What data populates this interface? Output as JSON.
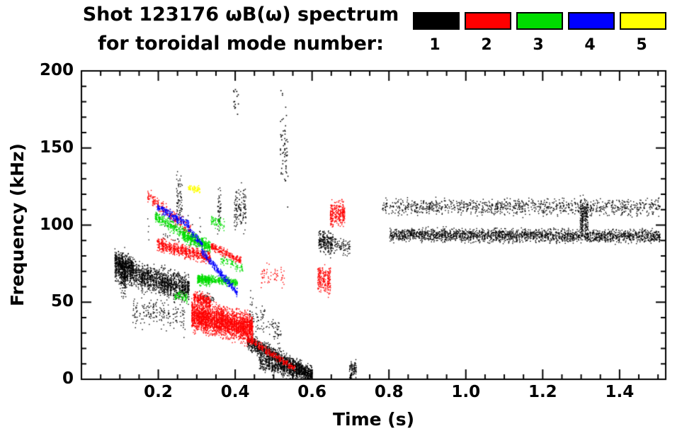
{
  "header": {
    "title_line1": "Shot 123176 ωB(ω) spectrum",
    "title_line2": "for toroidal mode number:"
  },
  "legend": {
    "entries": [
      {
        "label": "1",
        "color": "#000000"
      },
      {
        "label": "2",
        "color": "#ff0000"
      },
      {
        "label": "3",
        "color": "#00dd00"
      },
      {
        "label": "4",
        "color": "#0000ff"
      },
      {
        "label": "5",
        "color": "#ffff00"
      }
    ]
  },
  "chart_data": {
    "type": "scatter",
    "title": "Shot 123176 ωB(ω) spectrum for toroidal mode number:",
    "xlabel": "Time (s)",
    "ylabel": "Frequency (kHz)",
    "xlim": [
      0.0,
      1.52
    ],
    "ylim": [
      0,
      200
    ],
    "xticks": [
      0.2,
      0.4,
      0.6,
      0.8,
      1.0,
      1.2,
      1.4
    ],
    "xtick_labels": [
      "0.2",
      "0.4",
      "0.6",
      "0.8",
      "1.0",
      "1.2",
      "1.4"
    ],
    "yticks": [
      0,
      50,
      100,
      150,
      200
    ],
    "ytick_labels": [
      "0",
      "50",
      "100",
      "150",
      "200"
    ],
    "x_minor_step": 0.05,
    "y_minor_step": 10,
    "grid": false,
    "legend_position": "top",
    "background": "#ffffff",
    "axis_color": "#000000",
    "cluster_fields": "t0,t1 = time range (s); fa,fb = center frequency at t0 and t1 (kHz); sp = frequency spread (kHz); n = point count; cols = vertical streak columns",
    "series": [
      {
        "mode": 1,
        "label": "1",
        "name": "toroidal mode n=1",
        "color": "#000000",
        "clusters": [
          {
            "t0": 0.085,
            "t1": 0.28,
            "fa": 72,
            "fb": 59,
            "sp": 8,
            "n": 1700,
            "cols": 26
          },
          {
            "t0": 0.085,
            "t1": 0.135,
            "fa": 79,
            "fb": 74,
            "sp": 5,
            "n": 260,
            "cols": 6
          },
          {
            "t0": 0.098,
            "t1": 0.115,
            "fa": 68,
            "fb": 68,
            "sp": 13,
            "n": 130,
            "cols": 2
          },
          {
            "t0": 0.13,
            "t1": 0.27,
            "fa": 45,
            "fb": 40,
            "sp": 9,
            "n": 190,
            "cols": 8
          },
          {
            "t0": 0.245,
            "t1": 0.262,
            "fa": 117,
            "fb": 117,
            "sp": 16,
            "n": 70,
            "cols": 2
          },
          {
            "t0": 0.17,
            "t1": 0.31,
            "fa": 100,
            "fb": 95,
            "sp": 13,
            "n": 45,
            "cols": 11
          },
          {
            "t0": 0.352,
            "t1": 0.363,
            "fa": 110,
            "fb": 110,
            "sp": 14,
            "n": 45,
            "cols": 1
          },
          {
            "t0": 0.395,
            "t1": 0.428,
            "fa": 112,
            "fb": 110,
            "sp": 13,
            "n": 130,
            "cols": 3
          },
          {
            "t0": 0.393,
            "t1": 0.408,
            "fa": 178,
            "fb": 182,
            "sp": 9,
            "n": 14,
            "cols": 2,
            "ps": 1.7
          },
          {
            "t0": 0.515,
            "t1": 0.537,
            "fa": 148,
            "fb": 148,
            "sp": 30,
            "n": 60,
            "cols": 2,
            "ps": 1.6
          },
          {
            "t0": 0.43,
            "t1": 0.6,
            "fa": 25,
            "fb": 3,
            "sp": 5,
            "n": 1100,
            "cols": 22
          },
          {
            "t0": 0.46,
            "t1": 0.6,
            "fa": 12,
            "fb": 2,
            "sp": 5,
            "n": 700,
            "cols": 18
          },
          {
            "t0": 0.435,
            "t1": 0.52,
            "fa": 45,
            "fb": 30,
            "sp": 10,
            "n": 110,
            "cols": 6
          },
          {
            "t0": 0.615,
            "t1": 0.655,
            "fa": 90,
            "fb": 88,
            "sp": 7,
            "n": 230,
            "cols": 4
          },
          {
            "t0": 0.655,
            "t1": 0.7,
            "fa": 88,
            "fb": 86,
            "sp": 5,
            "n": 80,
            "cols": 4
          },
          {
            "t0": 0.695,
            "t1": 0.715,
            "fa": 7,
            "fb": 7,
            "sp": 5,
            "n": 90,
            "cols": 2
          },
          {
            "t0": 0.78,
            "t1": 1.505,
            "fa": 112,
            "fb": 112,
            "sp": 5,
            "n": 1100,
            "cols": 90
          },
          {
            "t0": 0.8,
            "t1": 1.505,
            "fa": 94,
            "fb": 93,
            "sp": 4,
            "n": 2300,
            "cols": 95
          },
          {
            "t0": 1.295,
            "t1": 1.318,
            "fa": 105,
            "fb": 105,
            "sp": 11,
            "n": 200,
            "cols": 2
          },
          {
            "t0": 0.3,
            "t1": 0.345,
            "fa": 55,
            "fb": 52,
            "sp": 3,
            "n": 40,
            "cols": 4
          }
        ]
      },
      {
        "mode": 2,
        "label": "2",
        "name": "toroidal mode n=2",
        "color": "#ff0000",
        "clusters": [
          {
            "t0": 0.17,
            "t1": 0.285,
            "fa": 120,
            "fb": 96,
            "sp": 4,
            "n": 230,
            "cols": 10
          },
          {
            "t0": 0.195,
            "t1": 0.335,
            "fa": 88,
            "fb": 79,
            "sp": 4,
            "n": 650,
            "cols": 14
          },
          {
            "t0": 0.335,
            "t1": 0.415,
            "fa": 87,
            "fb": 77,
            "sp": 2.5,
            "n": 240,
            "cols": 9
          },
          {
            "t0": 0.285,
            "t1": 0.445,
            "fa": 42,
            "fb": 33,
            "sp": 9,
            "n": 2800,
            "cols": 28
          },
          {
            "t0": 0.29,
            "t1": 0.335,
            "fa": 54,
            "fb": 50,
            "sp": 4,
            "n": 260,
            "cols": 6
          },
          {
            "t0": 0.43,
            "t1": 0.555,
            "fa": 27,
            "fb": 7,
            "sp": 2.2,
            "n": 320,
            "cols": 14
          },
          {
            "t0": 0.46,
            "t1": 0.53,
            "fa": 68,
            "fb": 66,
            "sp": 8,
            "n": 60,
            "cols": 4
          },
          {
            "t0": 0.612,
            "t1": 0.648,
            "fa": 66,
            "fb": 64,
            "sp": 8,
            "n": 230,
            "cols": 3
          },
          {
            "t0": 0.645,
            "t1": 0.685,
            "fa": 108,
            "fb": 108,
            "sp": 8,
            "n": 280,
            "cols": 4
          }
        ]
      },
      {
        "mode": 3,
        "label": "3",
        "name": "toroidal mode n=3",
        "color": "#00dd00",
        "clusters": [
          {
            "t0": 0.19,
            "t1": 0.265,
            "fa": 106,
            "fb": 95,
            "sp": 3.5,
            "n": 260,
            "cols": 10
          },
          {
            "t0": 0.262,
            "t1": 0.335,
            "fa": 94,
            "fb": 86,
            "sp": 4,
            "n": 520,
            "cols": 8
          },
          {
            "t0": 0.3,
            "t1": 0.405,
            "fa": 66,
            "fb": 63,
            "sp": 2.2,
            "n": 420,
            "cols": 12
          },
          {
            "t0": 0.3,
            "t1": 0.335,
            "fa": 65,
            "fb": 64,
            "sp": 3,
            "n": 160,
            "cols": 4
          },
          {
            "t0": 0.24,
            "t1": 0.275,
            "fa": 55,
            "fb": 53,
            "sp": 3,
            "n": 70,
            "cols": 4
          },
          {
            "t0": 0.335,
            "t1": 0.372,
            "fa": 104,
            "fb": 100,
            "sp": 3.5,
            "n": 70,
            "cols": 4
          },
          {
            "t0": 0.36,
            "t1": 0.42,
            "fa": 79,
            "fb": 71,
            "sp": 3,
            "n": 80,
            "cols": 5
          }
        ]
      },
      {
        "mode": 4,
        "label": "4",
        "name": "toroidal mode n=4",
        "color": "#0000ff",
        "clusters": [
          {
            "t0": 0.195,
            "t1": 0.28,
            "fa": 112,
            "fb": 100,
            "sp": 3,
            "n": 240,
            "cols": 9
          },
          {
            "t0": 0.275,
            "t1": 0.315,
            "fa": 99,
            "fb": 87,
            "sp": 3,
            "n": 90,
            "cols": 4
          },
          {
            "t0": 0.31,
            "t1": 0.405,
            "fa": 84,
            "fb": 56,
            "sp": 2.5,
            "n": 300,
            "cols": 10
          }
        ]
      },
      {
        "mode": 5,
        "label": "5",
        "name": "toroidal mode n=5",
        "color": "#ffff00",
        "clusters": [
          {
            "t0": 0.275,
            "t1": 0.308,
            "fa": 124,
            "fb": 123,
            "sp": 2.2,
            "n": 55,
            "cols": 3,
            "ps": 1.7
          }
        ]
      }
    ]
  }
}
